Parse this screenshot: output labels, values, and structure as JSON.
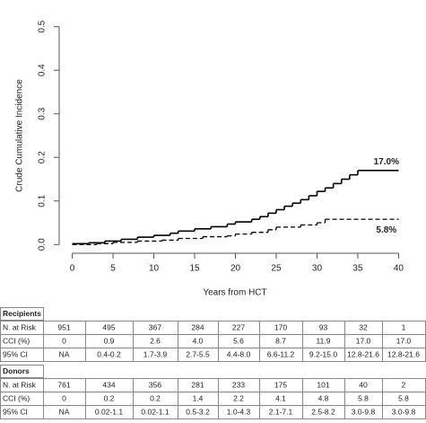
{
  "chart_data": {
    "type": "step",
    "xlabel": "Years from HCT",
    "ylabel": "Crude Cumulative Incidence",
    "xlim": [
      -1.6,
      41.6
    ],
    "ylim": [
      -0.02,
      0.52
    ],
    "xticks": [
      0,
      5,
      10,
      15,
      20,
      25,
      30,
      35,
      40
    ],
    "yticks": [
      {
        "value": 0,
        "label": "0.0"
      },
      0.1,
      0.2,
      0.3,
      0.4,
      0.5
    ],
    "series": [
      {
        "name": "Recipients",
        "color": "#000000",
        "line_style": "solid",
        "x": [
          0,
          2,
          4,
          6,
          8,
          10,
          12,
          13,
          15,
          17,
          19,
          20,
          22,
          23,
          24,
          25,
          26,
          27,
          28,
          29,
          30,
          31,
          32,
          33,
          34,
          35,
          40
        ],
        "values": [
          0.002,
          0.004,
          0.008,
          0.012,
          0.017,
          0.021,
          0.026,
          0.031,
          0.036,
          0.041,
          0.047,
          0.052,
          0.058,
          0.064,
          0.072,
          0.08,
          0.088,
          0.095,
          0.103,
          0.112,
          0.122,
          0.13,
          0.14,
          0.15,
          0.16,
          0.17,
          0.17
        ]
      },
      {
        "name": "Donors",
        "color": "#000000",
        "line_style": "dashed",
        "x": [
          0,
          3,
          5,
          8,
          11,
          13,
          16,
          19,
          20,
          22,
          24,
          25,
          28,
          30,
          31,
          40
        ],
        "values": [
          0,
          0.002,
          0.005,
          0.008,
          0.01,
          0.014,
          0.018,
          0.02,
          0.024,
          0.028,
          0.034,
          0.04,
          0.045,
          0.05,
          0.058,
          0.058
        ]
      }
    ],
    "annotations": [
      {
        "text": "17.0%",
        "x": 38.5,
        "y": 0.19
      },
      {
        "text": "5.8%",
        "x": 38.5,
        "y": 0.033
      }
    ]
  },
  "tables": [
    {
      "title": "Recipients",
      "rows": [
        [
          "N. at Risk",
          "951",
          "495",
          "367",
          "284",
          "227",
          "170",
          "93",
          "32",
          "1"
        ],
        [
          "CCI (%)",
          "0",
          "0.9",
          "2.6",
          "4.0",
          "5.6",
          "8.7",
          "11.9",
          "17.0",
          "17.0"
        ],
        [
          "95% CI",
          "NA",
          "0.4-0.2",
          "1.7-3.9",
          "2.7-5.5",
          "4.4-8.0",
          "6.6-11.2",
          "9.2-15.0",
          "12.8-21.6",
          "12.8-21.6"
        ]
      ]
    },
    {
      "title": "Donors",
      "rows": [
        [
          "N. at Risk",
          "761",
          "434",
          "356",
          "281",
          "233",
          "175",
          "101",
          "40",
          "2"
        ],
        [
          "CCI (%)",
          "0",
          "0.2",
          "0.2",
          "1.4",
          "2.2",
          "4.1",
          "4.8",
          "5.8",
          "5.8"
        ],
        [
          "95% CI",
          "NA",
          "0.02-1.1",
          "0.02-1.1",
          "0.5-3.2",
          "1.0-4.3",
          "2.1-7.1",
          "2.5-8.2",
          "3.0-9.8",
          "3.0-9.8"
        ]
      ]
    }
  ]
}
